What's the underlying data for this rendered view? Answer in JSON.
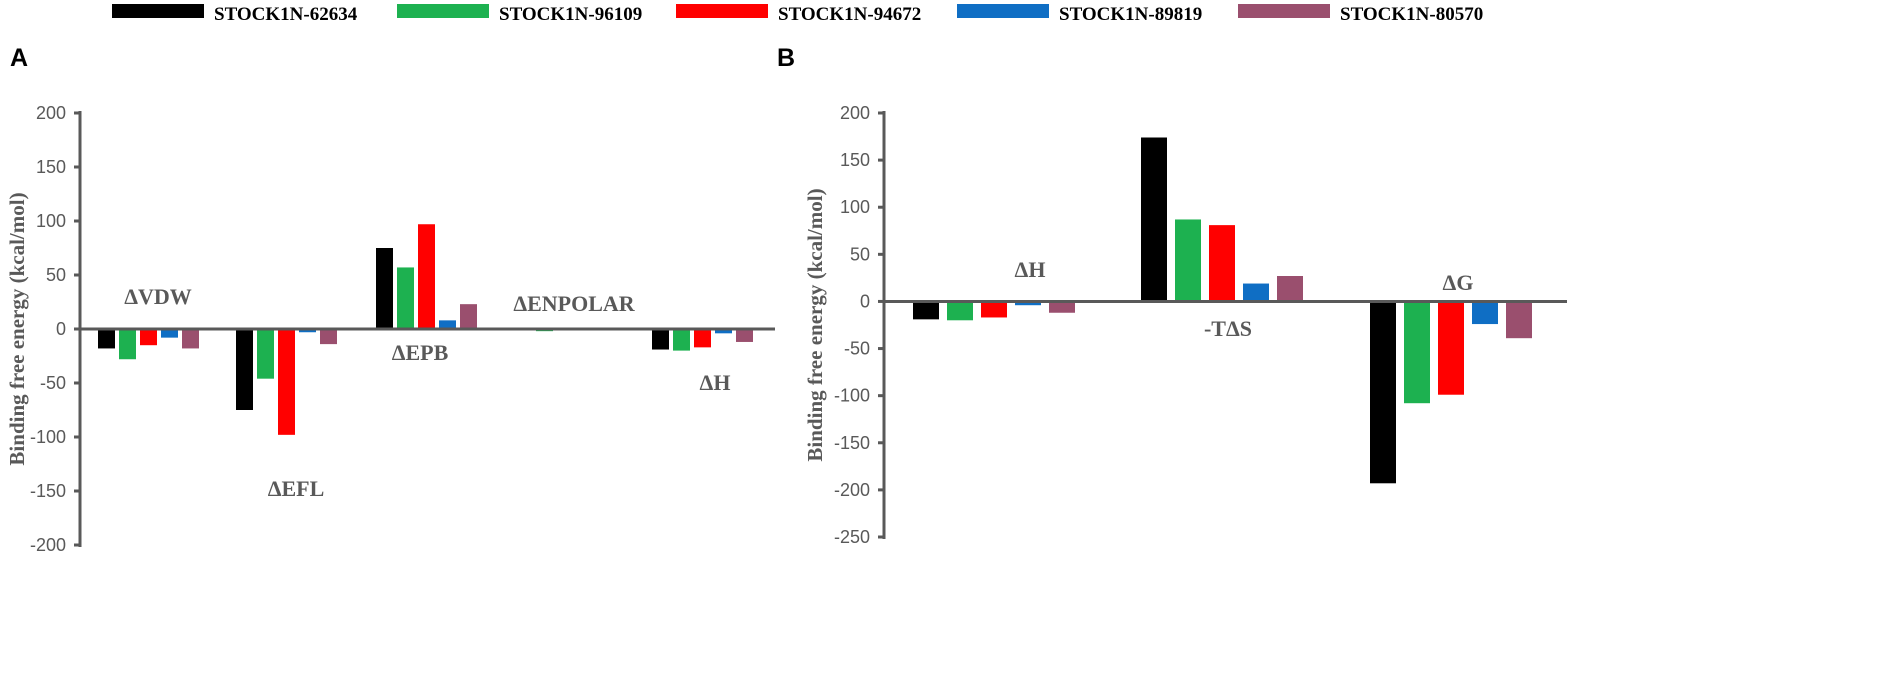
{
  "legend": [
    {
      "name": "STOCK1N-62634",
      "color": "#000000"
    },
    {
      "name": "STOCK1N-96109",
      "color": "#1DB150"
    },
    {
      "name": "STOCK1N-94672",
      "color": "#FF0000"
    },
    {
      "name": "STOCK1N-89819",
      "color": "#0F6EC4"
    },
    {
      "name": "STOCK1N-80570",
      "color": "#9A4F6E"
    }
  ],
  "chart_data": [
    {
      "panel_label": "A",
      "type": "bar",
      "ylabel": "Binding free energy (kcal/mol)",
      "ylim": [
        -200,
        200
      ],
      "yticks": [
        -200,
        -150,
        -100,
        -50,
        0,
        50,
        100,
        150,
        200
      ],
      "categories": [
        "ΔVDW",
        "ΔEFL",
        "ΔEPB",
        "ΔENPOLAR",
        "ΔH"
      ],
      "series": [
        {
          "name": "STOCK1N-62634",
          "values": [
            -18,
            -75,
            75,
            -1,
            -19
          ]
        },
        {
          "name": "STOCK1N-96109",
          "values": [
            -28,
            -46,
            57,
            -2,
            -20
          ]
        },
        {
          "name": "STOCK1N-94672",
          "values": [
            -15,
            -98,
            97,
            -1,
            -17
          ]
        },
        {
          "name": "STOCK1N-89819",
          "values": [
            -8,
            -3,
            8,
            -1,
            -4
          ]
        },
        {
          "name": "STOCK1N-80570",
          "values": [
            -18,
            -14,
            23,
            -1,
            -12
          ]
        }
      ]
    },
    {
      "panel_label": "B",
      "type": "bar",
      "ylabel": "Binding free energy (kcal/mol)",
      "ylim": [
        -250,
        200
      ],
      "yticks": [
        -250,
        -200,
        -150,
        -100,
        -50,
        0,
        50,
        100,
        150,
        200
      ],
      "categories": [
        "ΔH",
        "-TΔS",
        "ΔG"
      ],
      "series": [
        {
          "name": "STOCK1N-62634",
          "values": [
            -19,
            174,
            -193
          ]
        },
        {
          "name": "STOCK1N-96109",
          "values": [
            -20,
            87,
            -108
          ]
        },
        {
          "name": "STOCK1N-94672",
          "values": [
            -17,
            81,
            -99
          ]
        },
        {
          "name": "STOCK1N-89819",
          "values": [
            -4,
            19,
            -24
          ]
        },
        {
          "name": "STOCK1N-80570",
          "values": [
            -12,
            27,
            -39
          ]
        }
      ]
    }
  ]
}
